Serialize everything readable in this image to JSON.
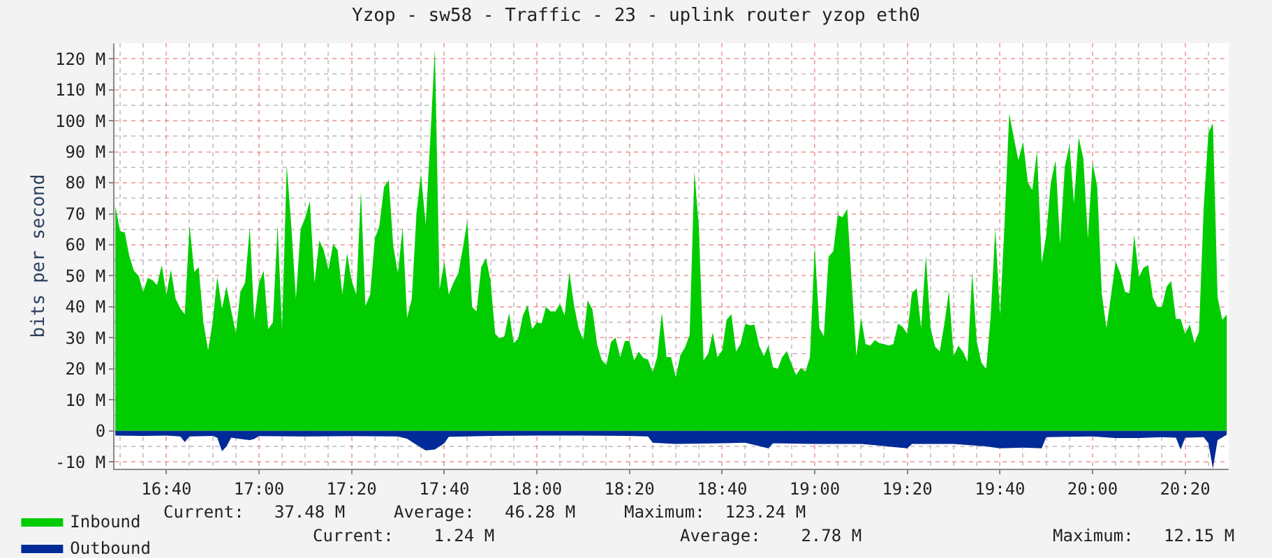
{
  "chart_data": {
    "type": "area",
    "title": "Yzop - sw58 - Traffic - 23 - uplink router yzop eth0",
    "ylabel": "bits per second",
    "x": [
      16.483,
      16.5,
      16.517,
      16.533,
      16.55,
      16.567,
      16.583,
      16.6,
      16.617,
      16.633,
      16.65,
      16.667,
      16.683,
      16.7,
      16.717,
      16.733,
      16.75,
      16.767,
      16.783,
      16.8,
      16.817,
      16.833,
      16.85,
      16.867,
      16.883,
      16.9,
      16.917,
      16.933,
      16.95,
      16.967,
      16.983,
      17.0,
      17.017,
      17.033,
      17.05,
      17.067,
      17.083,
      17.1,
      17.117,
      17.133,
      17.15,
      17.167,
      17.183,
      17.2,
      17.217,
      17.233,
      17.25,
      17.267,
      17.283,
      17.3,
      17.317,
      17.333,
      17.35,
      17.367,
      17.383,
      17.4,
      17.417,
      17.433,
      17.45,
      17.467,
      17.483,
      17.5,
      17.517,
      17.533,
      17.55,
      17.567,
      17.583,
      17.6,
      17.617,
      17.633,
      17.65,
      17.667,
      17.683,
      17.7,
      17.717,
      17.733,
      17.75,
      17.767,
      17.783,
      17.8,
      17.817,
      17.833,
      17.85,
      17.867,
      17.883,
      17.9,
      17.917,
      17.933,
      17.95,
      17.967,
      17.983,
      18.0,
      18.017,
      18.033,
      18.05,
      18.067,
      18.083,
      18.1,
      18.117,
      18.133,
      18.15,
      18.167,
      18.183,
      18.2,
      18.217,
      18.233,
      18.25,
      18.267,
      18.283,
      18.3,
      18.317,
      18.333,
      18.35,
      18.367,
      18.383,
      18.4,
      18.417,
      18.433,
      18.45,
      18.467,
      18.483,
      18.5,
      18.517,
      18.533,
      18.55,
      18.567,
      18.583,
      18.6,
      18.617,
      18.633,
      18.65,
      18.667,
      18.683,
      18.7,
      18.717,
      18.733,
      18.75,
      18.767,
      18.783,
      18.8,
      18.817,
      18.833,
      18.85,
      18.867,
      18.883,
      18.9,
      18.917,
      18.933,
      18.95,
      18.967,
      18.983,
      19.0,
      19.017,
      19.033,
      19.05,
      19.067,
      19.083,
      19.1,
      19.117,
      19.133,
      19.15,
      19.167,
      19.183,
      19.2,
      19.217,
      19.233,
      19.25,
      19.267,
      19.283,
      19.3,
      19.317,
      19.333,
      19.35,
      19.367,
      19.383,
      19.4,
      19.417,
      19.433,
      19.45,
      19.467,
      19.483,
      19.5,
      19.517,
      19.533,
      19.55,
      19.567,
      19.583,
      19.6,
      19.617,
      19.633,
      19.65,
      19.667,
      19.683,
      19.7,
      19.717,
      19.733,
      19.75,
      19.767,
      19.783,
      19.8,
      19.817,
      19.833,
      19.85,
      19.867,
      19.883,
      19.9,
      19.917,
      19.933,
      19.95,
      19.967,
      19.983,
      20.0,
      20.017,
      20.033,
      20.05,
      20.067,
      20.083,
      20.1,
      20.117,
      20.133,
      20.15,
      20.167,
      20.183,
      20.2,
      20.217,
      20.233,
      20.25,
      20.267,
      20.283,
      20.3,
      20.317,
      20.333,
      20.35,
      20.367,
      20.383,
      20.4,
      20.417,
      20.433,
      20.45,
      20.467,
      20.483
    ],
    "series": [
      {
        "name": "Inbound",
        "color": "#00cc00",
        "values": [
          72.6,
          64.4,
          64,
          56.5,
          51.6,
          50,
          44.8,
          49.3,
          48.6,
          47,
          53.4,
          44,
          52,
          42.6,
          39.5,
          37.6,
          66.3,
          51.3,
          52.8,
          35,
          26,
          35,
          49.6,
          39.5,
          46.6,
          38.8,
          31.6,
          44.8,
          47.8,
          65.6,
          35.8,
          47.8,
          51.6,
          32.8,
          35,
          66.3,
          32.8,
          85.7,
          65.1,
          42.6,
          65.1,
          68.9,
          74.1,
          47.8,
          61.4,
          58.3,
          52,
          60.2,
          58.3,
          44,
          57.3,
          48.6,
          44,
          77.1,
          40.3,
          44,
          62.1,
          65.9,
          78.6,
          80.9,
          59.8,
          50.8,
          65.6,
          36.5,
          42.6,
          70.4,
          82.9,
          66.6,
          94.9,
          123.2,
          45.6,
          54.6,
          44,
          47.8,
          50.8,
          58.6,
          67.8,
          40,
          38.5,
          52.8,
          55.8,
          48.6,
          31.3,
          29.8,
          30.5,
          38,
          28.3,
          29.8,
          37.3,
          40.6,
          32.8,
          35,
          34.7,
          40,
          38.5,
          38.5,
          41,
          37.3,
          51.1,
          41,
          33.2,
          29.3,
          42.1,
          39.2,
          27.8,
          23,
          21.2,
          28.6,
          30.1,
          23.8,
          29,
          29,
          22.7,
          25.6,
          23.5,
          23,
          18.9,
          23.8,
          38,
          23.8,
          23.8,
          17.4,
          24.5,
          26.8,
          31,
          83.6,
          65.9,
          22.7,
          25,
          31.7,
          23.8,
          26,
          35.8,
          37.6,
          25.6,
          28,
          34.6,
          34,
          34.3,
          27.5,
          24.1,
          27.5,
          20.5,
          20,
          23.8,
          25.7,
          21.5,
          18,
          20.3,
          19.2,
          23.8,
          59.5,
          33.1,
          30.5,
          56.1,
          58,
          69.6,
          68.9,
          71.6,
          48,
          24.1,
          36.5,
          28,
          27.5,
          29.3,
          28.3,
          28,
          27.5,
          28,
          34.6,
          33.5,
          31.3,
          44.4,
          46,
          33.1,
          56.5,
          33.1,
          27.2,
          25.6,
          34.7,
          45.1,
          24.1,
          27.5,
          25.6,
          22.3,
          51.1,
          29,
          22,
          20,
          36.5,
          65.1,
          37.3,
          66.2,
          102.3,
          94.4,
          87.2,
          93.2,
          80.2,
          77.6,
          90.2,
          54.1,
          62.9,
          80.2,
          87.2,
          60.2,
          85.1,
          92.2,
          73.4,
          94.7,
          87.7,
          62.1,
          86.6,
          78.6,
          44.4,
          33.1,
          44,
          54.6,
          50.8,
          44.8,
          44.4,
          63.2,
          49.6,
          52.6,
          53.5,
          43,
          40,
          40,
          46.6,
          48.3,
          36.1,
          36.1,
          31.3,
          34.3,
          28.3,
          32,
          71.9,
          96.2,
          99.2,
          43,
          35.8,
          37.5
        ]
      },
      {
        "name": "Outbound",
        "color": "#002a97",
        "x": [
          16.483,
          16.583,
          16.667,
          16.717,
          16.733,
          16.75,
          16.833,
          16.85,
          16.867,
          16.883,
          16.9,
          16.95,
          16.967,
          16.983,
          17.0,
          17.167,
          17.333,
          17.5,
          17.533,
          17.567,
          17.6,
          17.633,
          17.667,
          17.683,
          17.833,
          18.0,
          18.167,
          18.333,
          18.4,
          18.417,
          18.5,
          18.667,
          18.75,
          18.833,
          18.85,
          19.0,
          19.167,
          19.333,
          19.35,
          19.5,
          19.617,
          19.667,
          19.75,
          19.817,
          19.833,
          20.0,
          20.083,
          20.167,
          20.25,
          20.3,
          20.317,
          20.333,
          20.4,
          20.417,
          20.433,
          20.45,
          20.483
        ],
        "values": [
          -1.5,
          -1.6,
          -1.5,
          -1.8,
          -3.6,
          -1.8,
          -1.6,
          -2.2,
          -6.6,
          -5,
          -2.2,
          -2.8,
          -3,
          -2.6,
          -1.7,
          -1.8,
          -1.7,
          -1.8,
          -2.5,
          -4.5,
          -6.3,
          -6,
          -4,
          -1.9,
          -1.6,
          -1.5,
          -1.5,
          -1.6,
          -1.8,
          -3.8,
          -4.2,
          -4,
          -3.8,
          -5.6,
          -4,
          -4.2,
          -4.2,
          -5.6,
          -4.2,
          -4.2,
          -5,
          -5.6,
          -5.4,
          -5.6,
          -2,
          -1.8,
          -2.3,
          -2.3,
          -2,
          -2.2,
          -6,
          -2.2,
          -2,
          -4,
          -12.15,
          -3,
          -1.24
        ]
      }
    ],
    "xlim": [
      16.48,
      20.49
    ],
    "xticks": [
      {
        "value": 16.667,
        "label": "16:40"
      },
      {
        "value": 17.0,
        "label": "17:00"
      },
      {
        "value": 17.333,
        "label": "17:20"
      },
      {
        "value": 17.667,
        "label": "17:40"
      },
      {
        "value": 18.0,
        "label": "18:00"
      },
      {
        "value": 18.333,
        "label": "18:20"
      },
      {
        "value": 18.667,
        "label": "18:40"
      },
      {
        "value": 19.0,
        "label": "19:00"
      },
      {
        "value": 19.333,
        "label": "19:20"
      },
      {
        "value": 19.667,
        "label": "19:40"
      },
      {
        "value": 20.0,
        "label": "20:00"
      },
      {
        "value": 20.333,
        "label": "20:20"
      },
      {
        "value": 16.5,
        "label": null
      },
      {
        "value": 16.583,
        "label": null
      },
      {
        "value": 16.75,
        "label": null
      },
      {
        "value": 16.833,
        "label": null
      },
      {
        "value": 16.917,
        "label": null
      },
      {
        "value": 17.083,
        "label": null
      },
      {
        "value": 17.167,
        "label": null
      },
      {
        "value": 17.25,
        "label": null
      },
      {
        "value": 17.417,
        "label": null
      },
      {
        "value": 17.5,
        "label": null
      },
      {
        "value": 17.583,
        "label": null
      },
      {
        "value": 17.75,
        "label": null
      },
      {
        "value": 17.833,
        "label": null
      },
      {
        "value": 17.917,
        "label": null
      },
      {
        "value": 18.083,
        "label": null
      },
      {
        "value": 18.167,
        "label": null
      },
      {
        "value": 18.25,
        "label": null
      },
      {
        "value": 18.417,
        "label": null
      },
      {
        "value": 18.5,
        "label": null
      },
      {
        "value": 18.583,
        "label": null
      },
      {
        "value": 18.75,
        "label": null
      },
      {
        "value": 18.833,
        "label": null
      },
      {
        "value": 18.917,
        "label": null
      },
      {
        "value": 19.083,
        "label": null
      },
      {
        "value": 19.167,
        "label": null
      },
      {
        "value": 19.25,
        "label": null
      },
      {
        "value": 19.417,
        "label": null
      },
      {
        "value": 19.5,
        "label": null
      },
      {
        "value": 19.583,
        "label": null
      },
      {
        "value": 19.75,
        "label": null
      },
      {
        "value": 19.833,
        "label": null
      },
      {
        "value": 19.917,
        "label": null
      },
      {
        "value": 20.083,
        "label": null
      },
      {
        "value": 20.167,
        "label": null
      },
      {
        "value": 20.25,
        "label": null
      },
      {
        "value": 20.417,
        "label": null
      }
    ],
    "ylim": [
      -12.2,
      125
    ],
    "yticks": [
      {
        "value": -10,
        "label": "-10 M"
      },
      0,
      {
        "value": 10,
        "label": "10 M"
      },
      {
        "value": 20,
        "label": "20 M"
      },
      {
        "value": 30,
        "label": "30 M"
      },
      {
        "value": 40,
        "label": "40 M"
      },
      {
        "value": 50,
        "label": "50 M"
      },
      {
        "value": 60,
        "label": "60 M"
      },
      {
        "value": 70,
        "label": "70 M"
      },
      {
        "value": 80,
        "label": "80 M"
      },
      {
        "value": 90,
        "label": "90 M"
      },
      {
        "value": 100,
        "label": "100 M"
      },
      {
        "value": 110,
        "label": "110 M"
      },
      {
        "value": 120,
        "label": "120 M"
      },
      {
        "value": -5,
        "label": null
      },
      {
        "value": 5,
        "label": null
      },
      {
        "value": 15,
        "label": null
      },
      {
        "value": 25,
        "label": null
      },
      {
        "value": 35,
        "label": null
      },
      {
        "value": 45,
        "label": null
      },
      {
        "value": 55,
        "label": null
      },
      {
        "value": 65,
        "label": null
      },
      {
        "value": 75,
        "label": null
      },
      {
        "value": 85,
        "label": null
      },
      {
        "value": 95,
        "label": null
      },
      {
        "value": 105,
        "label": null
      },
      {
        "value": 115,
        "label": null
      }
    ],
    "grid": true,
    "legend": "bottom left",
    "annotations": [
      "Current:   37.48 M",
      "Average:   46.28 M",
      "Maximum:  123.24 M",
      "Current:    1.24 M",
      "Average:    2.78 M",
      "Maximum:   12.15 M"
    ]
  }
}
